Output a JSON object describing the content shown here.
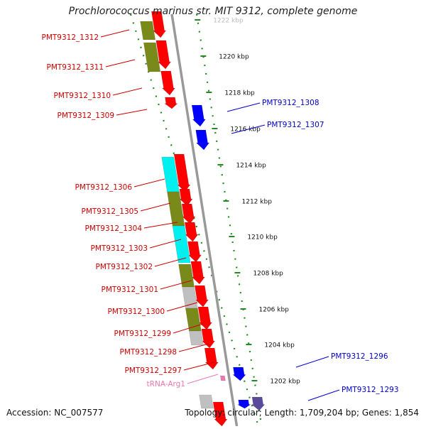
{
  "map": {
    "title": "Prochlorococcus marinus str. MIT 9312, complete genome",
    "accession_text": "Accession: NC_007577",
    "summary_text": "Topology: circular; Length: 1,709,204 bp; Genes: 1,854",
    "scale_labels": [
      "1222 kbp",
      "1220 kbp",
      "1218 kbp",
      "1216 kbp",
      "1214 kbp",
      "1212 kbp",
      "1210 kbp",
      "1208 kbp",
      "1206 kbp",
      "1204 kbp",
      "1202 kbp"
    ],
    "left_labels": [
      "PMT9312_1312",
      "PMT9312_1311",
      "PMT9312_1310",
      "PMT9312_1309",
      "PMT9312_1306",
      "PMT9312_1305",
      "PMT9312_1304",
      "PMT9312_1303",
      "PMT9312_1302",
      "PMT9312_1301",
      "PMT9312_1300",
      "PMT9312_1299",
      "PMT9312_1298",
      "PMT9312_1297",
      "tRNA-Arg1"
    ],
    "right_labels": [
      "PMT9312_1308",
      "PMT9312_1307",
      "PMT9312_1296",
      "PMT9312_1293"
    ],
    "colors": {
      "forward_cds": "#ff0000",
      "reverse_cds": "#0000ff",
      "trna": "#e87ab0",
      "cog_olive": "#7a8a1a",
      "cog_cyan": "#00f0f0",
      "cog_grey": "#c0c0c0",
      "cog_purple": "#5a4a9a",
      "backbone": "#999999",
      "ruler": "#228b22",
      "left_label": "#cc0000",
      "right_label": "#0000cc"
    }
  }
}
